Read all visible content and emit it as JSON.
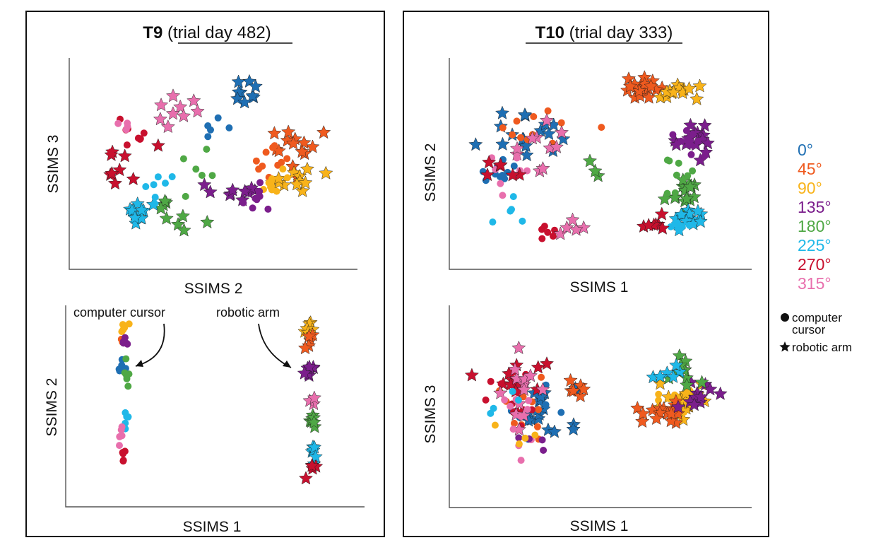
{
  "colors": {
    "0": "#1f6fb3",
    "45": "#ef5a1f",
    "90": "#f8b31a",
    "135": "#7b1e8c",
    "180": "#4fa845",
    "225": "#1fb8e8",
    "270": "#c8102e",
    "315": "#e86fad"
  },
  "legend": {
    "angles": [
      {
        "key": "0",
        "label": "0°"
      },
      {
        "key": "45",
        "label": "45°"
      },
      {
        "key": "90",
        "label": "90°"
      },
      {
        "key": "135",
        "label": "135°"
      },
      {
        "key": "180",
        "label": "180°"
      },
      {
        "key": "225",
        "label": "225°"
      },
      {
        "key": "270",
        "label": "270°"
      },
      {
        "key": "315",
        "label": "315°"
      }
    ],
    "markers": [
      {
        "symbol": "circle",
        "label_lines": [
          "computer",
          "cursor"
        ]
      },
      {
        "symbol": "star",
        "label_lines": [
          "robotic arm"
        ]
      }
    ]
  },
  "panels": {
    "t9": {
      "title_bold": "T9",
      "title_rest": " (trial day 482)"
    },
    "t10": {
      "title_bold": "T10",
      "title_rest": " (trial day 333)"
    }
  },
  "annotations": {
    "computer_cursor": "computer cursor",
    "robotic_arm": "robotic arm"
  },
  "chart_data": [
    {
      "id": "t9_top",
      "type": "scatter",
      "title": "T9 (trial day 482)",
      "xlabel": "SSIMS 2",
      "ylabel": "SSIMS 3",
      "xlim": [
        0,
        10
      ],
      "ylim": [
        0,
        10
      ],
      "grid": false,
      "clusters": [
        {
          "angle": "0",
          "marker": "star",
          "n": 9,
          "cx": 6.0,
          "cy": 8.3,
          "sx": 0.6,
          "sy": 0.8
        },
        {
          "angle": "0",
          "marker": "circle",
          "n": 5,
          "cx": 4.8,
          "cy": 6.8,
          "sx": 0.6,
          "sy": 0.5
        },
        {
          "angle": "45",
          "marker": "star",
          "n": 14,
          "cx": 8.2,
          "cy": 6.0,
          "sx": 1.0,
          "sy": 1.0
        },
        {
          "angle": "45",
          "marker": "circle",
          "n": 10,
          "cx": 7.3,
          "cy": 5.3,
          "sx": 0.6,
          "sy": 0.8
        },
        {
          "angle": "90",
          "marker": "star",
          "n": 12,
          "cx": 8.0,
          "cy": 4.3,
          "sx": 0.9,
          "sy": 0.6
        },
        {
          "angle": "90",
          "marker": "circle",
          "n": 8,
          "cx": 7.2,
          "cy": 4.2,
          "sx": 0.6,
          "sy": 0.5
        },
        {
          "angle": "135",
          "marker": "star",
          "n": 10,
          "cx": 5.6,
          "cy": 3.8,
          "sx": 0.9,
          "sy": 0.6
        },
        {
          "angle": "135",
          "marker": "circle",
          "n": 8,
          "cx": 6.6,
          "cy": 3.3,
          "sx": 0.7,
          "sy": 0.6
        },
        {
          "angle": "180",
          "marker": "star",
          "n": 10,
          "cx": 3.4,
          "cy": 2.7,
          "sx": 0.8,
          "sy": 0.8
        },
        {
          "angle": "180",
          "marker": "circle",
          "n": 6,
          "cx": 4.2,
          "cy": 4.2,
          "sx": 0.8,
          "sy": 1.0
        },
        {
          "angle": "225",
          "marker": "star",
          "n": 12,
          "cx": 2.2,
          "cy": 2.6,
          "sx": 0.4,
          "sy": 0.5
        },
        {
          "angle": "225",
          "marker": "circle",
          "n": 7,
          "cx": 2.9,
          "cy": 3.8,
          "sx": 0.5,
          "sy": 0.7
        },
        {
          "angle": "270",
          "marker": "star",
          "n": 9,
          "cx": 1.7,
          "cy": 5.1,
          "sx": 0.8,
          "sy": 0.8
        },
        {
          "angle": "270",
          "marker": "circle",
          "n": 9,
          "cx": 1.8,
          "cy": 6.2,
          "sx": 0.6,
          "sy": 0.8
        },
        {
          "angle": "315",
          "marker": "star",
          "n": 9,
          "cx": 3.7,
          "cy": 7.5,
          "sx": 0.8,
          "sy": 0.8
        },
        {
          "angle": "315",
          "marker": "circle",
          "n": 4,
          "cx": 1.9,
          "cy": 7.3,
          "sx": 0.5,
          "sy": 0.6
        }
      ]
    },
    {
      "id": "t9_bottom",
      "type": "scatter",
      "xlabel": "SSIMS 1",
      "ylabel": "SSIMS 2",
      "xlim": [
        0,
        10
      ],
      "ylim": [
        0,
        10
      ],
      "grid": false,
      "clusters": [
        {
          "angle": "90",
          "marker": "circle",
          "n": 5,
          "cx": 1.7,
          "cy": 9.3,
          "sx": 0.15,
          "sy": 0.25
        },
        {
          "angle": "45",
          "marker": "circle",
          "n": 4,
          "cx": 1.6,
          "cy": 8.7,
          "sx": 0.15,
          "sy": 0.3
        },
        {
          "angle": "135",
          "marker": "circle",
          "n": 5,
          "cx": 1.7,
          "cy": 8.4,
          "sx": 0.15,
          "sy": 0.4
        },
        {
          "angle": "0",
          "marker": "circle",
          "n": 6,
          "cx": 1.6,
          "cy": 7.3,
          "sx": 0.12,
          "sy": 0.5
        },
        {
          "angle": "180",
          "marker": "circle",
          "n": 6,
          "cx": 1.8,
          "cy": 6.5,
          "sx": 0.12,
          "sy": 0.6
        },
        {
          "angle": "225",
          "marker": "circle",
          "n": 5,
          "cx": 1.8,
          "cy": 4.4,
          "sx": 0.12,
          "sy": 0.5
        },
        {
          "angle": "315",
          "marker": "circle",
          "n": 5,
          "cx": 1.6,
          "cy": 3.5,
          "sx": 0.12,
          "sy": 0.5
        },
        {
          "angle": "270",
          "marker": "circle",
          "n": 6,
          "cx": 1.7,
          "cy": 2.3,
          "sx": 0.12,
          "sy": 0.4
        },
        {
          "angle": "90",
          "marker": "star",
          "n": 6,
          "cx": 8.7,
          "cy": 9.3,
          "sx": 0.15,
          "sy": 0.35
        },
        {
          "angle": "45",
          "marker": "star",
          "n": 5,
          "cx": 8.8,
          "cy": 8.4,
          "sx": 0.15,
          "sy": 0.4
        },
        {
          "angle": "135",
          "marker": "star",
          "n": 7,
          "cx": 8.7,
          "cy": 7.1,
          "sx": 0.15,
          "sy": 0.6
        },
        {
          "angle": "315",
          "marker": "star",
          "n": 3,
          "cx": 8.8,
          "cy": 5.0,
          "sx": 0.12,
          "sy": 0.6
        },
        {
          "angle": "180",
          "marker": "star",
          "n": 7,
          "cx": 8.8,
          "cy": 4.2,
          "sx": 0.12,
          "sy": 0.7
        },
        {
          "angle": "225",
          "marker": "star",
          "n": 6,
          "cx": 8.9,
          "cy": 2.6,
          "sx": 0.12,
          "sy": 0.5
        },
        {
          "angle": "270",
          "marker": "star",
          "n": 5,
          "cx": 8.8,
          "cy": 1.4,
          "sx": 0.12,
          "sy": 0.5
        }
      ]
    },
    {
      "id": "t10_top",
      "type": "scatter",
      "title": "T10 (trial day 333)",
      "xlabel": "SSIMS 1",
      "ylabel": "SSIMS 2",
      "xlim": [
        0,
        10
      ],
      "ylim": [
        0,
        10
      ],
      "grid": false,
      "clusters": [
        {
          "angle": "45",
          "marker": "star",
          "n": 18,
          "cx": 6.9,
          "cy": 9.1,
          "sx": 0.8,
          "sy": 0.4
        },
        {
          "angle": "90",
          "marker": "star",
          "n": 14,
          "cx": 8.3,
          "cy": 8.9,
          "sx": 0.6,
          "sy": 0.4
        },
        {
          "angle": "135",
          "marker": "star",
          "n": 16,
          "cx": 9.0,
          "cy": 6.5,
          "sx": 0.6,
          "sy": 0.7
        },
        {
          "angle": "135",
          "marker": "circle",
          "n": 10,
          "cx": 8.9,
          "cy": 6.2,
          "sx": 0.6,
          "sy": 0.8
        },
        {
          "angle": "180",
          "marker": "star",
          "n": 16,
          "cx": 8.6,
          "cy": 3.8,
          "sx": 0.5,
          "sy": 0.8
        },
        {
          "angle": "180",
          "marker": "circle",
          "n": 8,
          "cx": 8.4,
          "cy": 4.2,
          "sx": 0.5,
          "sy": 0.7
        },
        {
          "angle": "225",
          "marker": "star",
          "n": 14,
          "cx": 8.7,
          "cy": 2.4,
          "sx": 0.5,
          "sy": 0.6
        },
        {
          "angle": "225",
          "marker": "circle",
          "n": 8,
          "cx": 8.5,
          "cy": 2.1,
          "sx": 0.5,
          "sy": 0.6
        },
        {
          "angle": "270",
          "marker": "star",
          "n": 7,
          "cx": 7.5,
          "cy": 1.8,
          "sx": 0.4,
          "sy": 0.5
        },
        {
          "angle": "270",
          "marker": "circle",
          "n": 6,
          "cx": 3.3,
          "cy": 1.6,
          "sx": 0.8,
          "sy": 0.4
        },
        {
          "angle": "0",
          "marker": "star",
          "n": 18,
          "cx": 2.8,
          "cy": 6.6,
          "sx": 1.4,
          "sy": 1.3
        },
        {
          "angle": "0",
          "marker": "circle",
          "n": 10,
          "cx": 1.4,
          "cy": 5.0,
          "sx": 0.6,
          "sy": 1.2
        },
        {
          "angle": "45",
          "marker": "circle",
          "n": 12,
          "cx": 3.0,
          "cy": 7.0,
          "sx": 1.6,
          "sy": 1.2
        },
        {
          "angle": "315",
          "marker": "star",
          "n": 10,
          "cx": 2.8,
          "cy": 6.2,
          "sx": 1.4,
          "sy": 1.4
        },
        {
          "angle": "315",
          "marker": "circle",
          "n": 10,
          "cx": 1.7,
          "cy": 4.5,
          "sx": 0.8,
          "sy": 1.4
        },
        {
          "angle": "270",
          "marker": "star",
          "n": 6,
          "cx": 1.6,
          "cy": 4.8,
          "sx": 0.8,
          "sy": 1.0
        },
        {
          "angle": "225",
          "marker": "circle",
          "n": 5,
          "cx": 2.0,
          "cy": 2.8,
          "sx": 0.7,
          "sy": 0.8
        },
        {
          "angle": "180",
          "marker": "star",
          "n": 3,
          "cx": 4.9,
          "cy": 4.6,
          "sx": 0.5,
          "sy": 0.4
        },
        {
          "angle": "315",
          "marker": "star",
          "n": 5,
          "cx": 4.3,
          "cy": 1.8,
          "sx": 0.8,
          "sy": 0.3
        }
      ]
    },
    {
      "id": "t10_bottom",
      "type": "scatter",
      "xlabel": "SSIMS 1",
      "ylabel": "SSIMS 3",
      "xlim": [
        0,
        10
      ],
      "ylim": [
        0,
        10
      ],
      "grid": false,
      "clusters": [
        {
          "angle": "90",
          "marker": "star",
          "n": 20,
          "cx": 8.2,
          "cy": 5.3,
          "sx": 0.8,
          "sy": 0.8
        },
        {
          "angle": "90",
          "marker": "circle",
          "n": 8,
          "cx": 8.0,
          "cy": 5.0,
          "sx": 0.8,
          "sy": 0.8
        },
        {
          "angle": "45",
          "marker": "star",
          "n": 16,
          "cx": 7.5,
          "cy": 4.8,
          "sx": 0.9,
          "sy": 1.0
        },
        {
          "angle": "135",
          "marker": "star",
          "n": 12,
          "cx": 9.0,
          "cy": 5.5,
          "sx": 0.6,
          "sy": 0.9
        },
        {
          "angle": "180",
          "marker": "star",
          "n": 10,
          "cx": 8.4,
          "cy": 6.8,
          "sx": 0.7,
          "sy": 0.7
        },
        {
          "angle": "225",
          "marker": "star",
          "n": 6,
          "cx": 7.8,
          "cy": 6.8,
          "sx": 0.7,
          "sy": 0.4
        },
        {
          "angle": "0",
          "marker": "star",
          "n": 18,
          "cx": 3.2,
          "cy": 4.8,
          "sx": 1.2,
          "sy": 1.4
        },
        {
          "angle": "0",
          "marker": "circle",
          "n": 8,
          "cx": 2.5,
          "cy": 4.6,
          "sx": 1.0,
          "sy": 1.4
        },
        {
          "angle": "45",
          "marker": "circle",
          "n": 10,
          "cx": 2.4,
          "cy": 4.5,
          "sx": 1.0,
          "sy": 1.6
        },
        {
          "angle": "45",
          "marker": "star",
          "n": 6,
          "cx": 4.0,
          "cy": 5.5,
          "sx": 1.0,
          "sy": 1.0
        },
        {
          "angle": "270",
          "marker": "star",
          "n": 12,
          "cx": 2.0,
          "cy": 6.5,
          "sx": 1.0,
          "sy": 1.6
        },
        {
          "angle": "270",
          "marker": "circle",
          "n": 12,
          "cx": 1.8,
          "cy": 5.5,
          "sx": 0.8,
          "sy": 1.8
        },
        {
          "angle": "315",
          "marker": "star",
          "n": 14,
          "cx": 2.3,
          "cy": 5.6,
          "sx": 0.9,
          "sy": 1.6
        },
        {
          "angle": "315",
          "marker": "circle",
          "n": 10,
          "cx": 2.0,
          "cy": 4.2,
          "sx": 0.8,
          "sy": 1.8
        },
        {
          "angle": "225",
          "marker": "circle",
          "n": 4,
          "cx": 1.3,
          "cy": 5.4,
          "sx": 0.5,
          "sy": 1.0
        },
        {
          "angle": "135",
          "marker": "circle",
          "n": 4,
          "cx": 2.8,
          "cy": 3.0,
          "sx": 0.8,
          "sy": 0.8
        },
        {
          "angle": "90",
          "marker": "circle",
          "n": 4,
          "cx": 2.2,
          "cy": 3.2,
          "sx": 0.8,
          "sy": 1.0
        }
      ]
    }
  ]
}
